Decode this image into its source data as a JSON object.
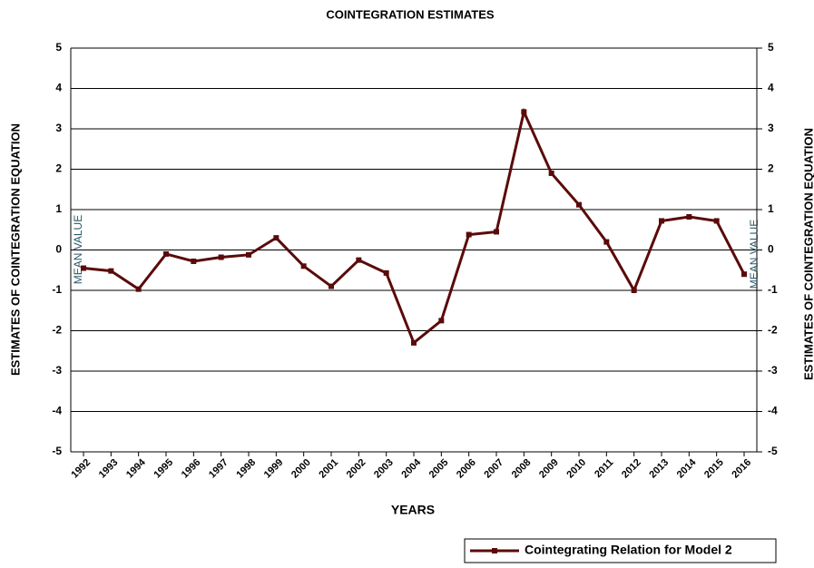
{
  "chart_data": {
    "type": "line",
    "title": "COINTEGRATION ESTIMATES",
    "x_label": "YEARS",
    "y_label": "ESTIMATES OF COINTEGRATION EQUATION",
    "y2_label": "ESTIMATES OF COINTEGRATION EQUATION",
    "annotations": [
      "MEAN VALUE",
      "MEAN VALUE"
    ],
    "categories": [
      "1992",
      "1993",
      "1994",
      "1995",
      "1996",
      "1997",
      "1998",
      "1999",
      "2000",
      "2001",
      "2002",
      "2003",
      "2004",
      "2005",
      "2006",
      "2007",
      "2008",
      "2009",
      "2010",
      "2011",
      "2012",
      "2013",
      "2014",
      "2015",
      "2016"
    ],
    "series": [
      {
        "name": "Cointegrating Relation for Model 2",
        "color": "#5a0a0a",
        "values": [
          -0.45,
          -0.52,
          -0.97,
          -0.1,
          -0.28,
          -0.18,
          -0.12,
          0.3,
          -0.4,
          -0.9,
          -0.25,
          -0.57,
          -2.3,
          -1.75,
          0.38,
          0.45,
          3.42,
          1.9,
          1.12,
          0.2,
          -1.0,
          0.72,
          0.82,
          0.72,
          -0.6
        ]
      }
    ],
    "ylim": [
      -5,
      5
    ],
    "yticks": [
      -5,
      -4,
      -3,
      -2,
      -1,
      0,
      1,
      2,
      3,
      4,
      5
    ],
    "y2lim": [
      -5,
      5
    ],
    "y2ticks": [
      -5,
      -4,
      -3,
      -2,
      -1,
      0,
      1,
      2,
      3,
      4,
      5
    ],
    "grid": true,
    "legend": "bottom-right"
  }
}
